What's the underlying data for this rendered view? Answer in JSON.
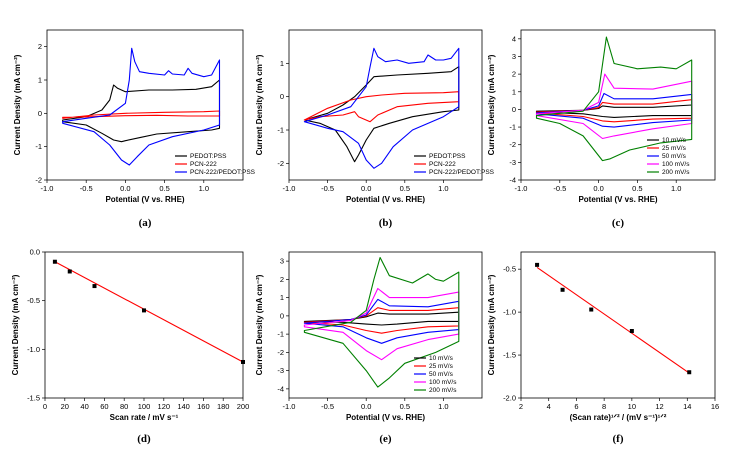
{
  "chart_data": [
    {
      "id": "a",
      "type": "line",
      "caption": "(a)",
      "xlabel": "Potential (V vs. RHE)",
      "ylabel": "Current Density (mA cm⁻²)",
      "xlim": [
        -1.0,
        1.5
      ],
      "ylim": [
        -2.0,
        2.5
      ],
      "xticks": [
        -1.0,
        -0.5,
        0.0,
        0.5,
        1.0
      ],
      "xtick_labels": [
        "-1.0",
        "-0.5",
        "0.0",
        "0.5",
        "1.0"
      ],
      "yticks": [
        -2,
        -1,
        0,
        1,
        2
      ],
      "ytick_labels": [
        "-2",
        "-1",
        "0",
        "1",
        "2"
      ],
      "legend_position": "bottom-right",
      "series": [
        {
          "name": "PEDOT:PSS",
          "color": "#000000",
          "closed": true,
          "x": [
            -0.8,
            -0.5,
            -0.3,
            -0.2,
            -0.15,
            -0.1,
            0.0,
            0.3,
            0.6,
            0.9,
            1.1,
            1.2,
            1.2,
            1.1,
            0.8,
            0.4,
            0.2,
            0.0,
            -0.05,
            -0.15,
            -0.3,
            -0.5,
            -0.8
          ],
          "y": [
            -0.2,
            -0.1,
            0.1,
            0.4,
            0.85,
            0.75,
            0.65,
            0.7,
            0.7,
            0.72,
            0.8,
            1.0,
            -0.45,
            -0.5,
            -0.55,
            -0.62,
            -0.72,
            -0.82,
            -0.85,
            -0.8,
            -0.6,
            -0.35,
            -0.25
          ]
        },
        {
          "name": "PCN-222",
          "color": "#ff0000",
          "closed": true,
          "x": [
            -0.8,
            -0.4,
            0.0,
            0.5,
            1.0,
            1.2,
            1.2,
            0.8,
            0.4,
            0.0,
            -0.4,
            -0.8
          ],
          "y": [
            -0.15,
            -0.05,
            0.0,
            0.03,
            0.05,
            0.07,
            -0.08,
            -0.08,
            -0.06,
            -0.07,
            -0.1,
            -0.12
          ]
        },
        {
          "name": "PCN-222/PEDOT:PSS",
          "color": "#0000ff",
          "closed": true,
          "x": [
            -0.8,
            -0.5,
            -0.2,
            0.0,
            0.05,
            0.08,
            0.12,
            0.18,
            0.3,
            0.5,
            0.55,
            0.6,
            0.75,
            0.8,
            0.85,
            1.0,
            1.1,
            1.2,
            1.2,
            1.0,
            0.6,
            0.3,
            0.15,
            0.05,
            -0.05,
            -0.2,
            -0.4,
            -0.8
          ],
          "y": [
            -0.25,
            -0.15,
            -0.05,
            0.3,
            1.0,
            1.95,
            1.55,
            1.25,
            1.2,
            1.15,
            1.28,
            1.18,
            1.15,
            1.35,
            1.2,
            1.1,
            1.15,
            1.6,
            -0.35,
            -0.5,
            -0.7,
            -0.95,
            -1.3,
            -1.55,
            -1.4,
            -0.95,
            -0.55,
            -0.3
          ]
        }
      ]
    },
    {
      "id": "b",
      "type": "line",
      "caption": "(b)",
      "xlabel": "Potential (V vs. RHE)",
      "ylabel": "Current Density (mA cm⁻²)",
      "xlim": [
        -1.0,
        1.5
      ],
      "ylim": [
        -2.5,
        2.0
      ],
      "xticks": [
        -1.0,
        -0.5,
        0.0,
        0.5,
        1.0
      ],
      "xtick_labels": [
        "-1.0",
        "-0.5",
        "0.0",
        "0.5",
        "1.0"
      ],
      "yticks": [
        -2,
        -1,
        0,
        1
      ],
      "ytick_labels": [
        "-2",
        "-1",
        "0",
        "1"
      ],
      "legend_position": "bottom-right",
      "series": [
        {
          "name": "PEDOT:PSS",
          "color": "#000000",
          "closed": true,
          "x": [
            -0.8,
            -0.5,
            -0.3,
            -0.15,
            0.0,
            0.1,
            0.4,
            0.8,
            1.1,
            1.2,
            1.2,
            1.0,
            0.6,
            0.3,
            0.1,
            0.0,
            -0.1,
            -0.15,
            -0.25,
            -0.4,
            -0.6,
            -0.8
          ],
          "y": [
            -0.7,
            -0.5,
            -0.25,
            0.0,
            0.35,
            0.6,
            0.65,
            0.7,
            0.75,
            0.9,
            -0.4,
            -0.45,
            -0.6,
            -0.8,
            -0.95,
            -1.3,
            -1.75,
            -1.95,
            -1.5,
            -1.0,
            -0.8,
            -0.7
          ]
        },
        {
          "name": "PCN-222",
          "color": "#ff0000",
          "closed": true,
          "x": [
            -0.8,
            -0.5,
            -0.2,
            0.0,
            0.2,
            0.5,
            1.0,
            1.2,
            1.2,
            0.8,
            0.4,
            0.15,
            0.05,
            -0.1,
            -0.15,
            -0.3,
            -0.6,
            -0.8
          ],
          "y": [
            -0.7,
            -0.35,
            -0.1,
            0.0,
            0.05,
            0.1,
            0.12,
            0.15,
            -0.15,
            -0.2,
            -0.3,
            -0.55,
            -0.75,
            -0.6,
            -0.45,
            -0.55,
            -0.6,
            -0.7
          ]
        },
        {
          "name": "PCN-222/PEDOT:PSS",
          "color": "#0000ff",
          "closed": true,
          "x": [
            -0.8,
            -0.5,
            -0.2,
            0.0,
            0.05,
            0.1,
            0.15,
            0.25,
            0.4,
            0.55,
            0.75,
            0.8,
            0.9,
            1.0,
            1.1,
            1.2,
            1.2,
            1.0,
            0.6,
            0.35,
            0.2,
            0.1,
            0.0,
            -0.1,
            -0.3,
            -0.5,
            -0.8
          ],
          "y": [
            -0.75,
            -0.55,
            -0.3,
            0.3,
            0.9,
            1.45,
            1.2,
            1.05,
            1.1,
            1.0,
            1.05,
            1.25,
            1.1,
            1.1,
            1.15,
            1.45,
            -0.3,
            -0.6,
            -1.0,
            -1.5,
            -2.0,
            -2.15,
            -1.9,
            -1.4,
            -1.05,
            -0.95,
            -0.75
          ]
        }
      ]
    },
    {
      "id": "c",
      "type": "line",
      "caption": "(c)",
      "xlabel": "Potential (V vs. RHE)",
      "ylabel": "Current Density (mA cm⁻²)",
      "xlim": [
        -1.0,
        1.5
      ],
      "ylim": [
        -4.0,
        4.5
      ],
      "xticks": [
        -1.0,
        -0.5,
        0.0,
        0.5,
        1.0
      ],
      "xtick_labels": [
        "-1.0",
        "-0.5",
        "0.0",
        "0.5",
        "1.0"
      ],
      "yticks": [
        -4,
        -3,
        -2,
        -1,
        0,
        1,
        2,
        3,
        4
      ],
      "ytick_labels": [
        "-4",
        "-3",
        "-2",
        "-1",
        "0",
        "1",
        "2",
        "3",
        "4"
      ],
      "legend_position": "bottom-right",
      "series": [
        {
          "name": "10 mV/s",
          "color": "#000000",
          "closed": true,
          "x": [
            -0.8,
            -0.2,
            0.0,
            0.05,
            0.2,
            0.7,
            1.2,
            1.2,
            0.7,
            0.2,
            0.05,
            -0.2,
            -0.8
          ],
          "y": [
            -0.1,
            -0.05,
            0.05,
            0.2,
            0.12,
            0.12,
            0.25,
            -0.35,
            -0.35,
            -0.45,
            -0.4,
            -0.25,
            -0.15
          ]
        },
        {
          "name": "25 mV/s",
          "color": "#ff0000",
          "closed": true,
          "x": [
            -0.8,
            -0.2,
            0.0,
            0.05,
            0.2,
            0.7,
            1.2,
            1.2,
            0.7,
            0.2,
            0.05,
            -0.2,
            -0.8
          ],
          "y": [
            -0.15,
            -0.05,
            0.1,
            0.4,
            0.3,
            0.3,
            0.55,
            -0.5,
            -0.55,
            -0.7,
            -0.65,
            -0.4,
            -0.2
          ]
        },
        {
          "name": "50 mV/s",
          "color": "#0000ff",
          "closed": true,
          "x": [
            -0.8,
            -0.2,
            0.0,
            0.07,
            0.2,
            0.7,
            1.2,
            1.2,
            0.7,
            0.2,
            0.05,
            -0.2,
            -0.8
          ],
          "y": [
            -0.2,
            -0.05,
            0.2,
            0.9,
            0.6,
            0.6,
            0.85,
            -0.6,
            -0.75,
            -1.0,
            -0.95,
            -0.5,
            -0.25
          ]
        },
        {
          "name": "100 mV/s",
          "color": "#ff00ff",
          "closed": true,
          "x": [
            -0.8,
            -0.2,
            0.0,
            0.08,
            0.2,
            0.7,
            1.2,
            1.2,
            0.7,
            0.2,
            0.05,
            -0.2,
            -0.8
          ],
          "y": [
            -0.25,
            -0.05,
            0.4,
            2.0,
            1.2,
            1.15,
            1.6,
            -0.8,
            -1.1,
            -1.5,
            -1.65,
            -0.8,
            -0.35
          ]
        },
        {
          "name": "200 mV/s",
          "color": "#008000",
          "closed": true,
          "x": [
            -0.8,
            -0.2,
            0.0,
            0.1,
            0.2,
            0.5,
            0.8,
            1.0,
            1.2,
            1.2,
            0.8,
            0.4,
            0.15,
            0.05,
            -0.2,
            -0.5,
            -0.8
          ],
          "y": [
            -0.35,
            -0.1,
            1.0,
            4.1,
            2.6,
            2.3,
            2.4,
            2.3,
            2.8,
            -1.7,
            -1.9,
            -2.3,
            -2.8,
            -2.9,
            -1.5,
            -0.8,
            -0.5
          ]
        }
      ]
    },
    {
      "id": "d",
      "type": "scatter",
      "caption": "(d)",
      "xlabel": "Scan rate / mV s⁻¹",
      "ylabel": "Current Density (mA cm⁻²)",
      "xlim": [
        0,
        200
      ],
      "ylim": [
        -1.5,
        0.0
      ],
      "xticks": [
        0,
        20,
        40,
        60,
        80,
        100,
        120,
        140,
        160,
        180,
        200
      ],
      "xtick_labels": [
        "0",
        "20",
        "40",
        "60",
        "80",
        "100",
        "120",
        "140",
        "160",
        "180",
        "200"
      ],
      "yticks": [
        -1.5,
        -1.0,
        -0.5,
        0.0
      ],
      "ytick_labels": [
        "-1.5",
        "-1.0",
        "-0.5",
        "0.0"
      ],
      "points": {
        "x": [
          10,
          25,
          50,
          100,
          200
        ],
        "y": [
          -0.1,
          -0.2,
          -0.35,
          -0.6,
          -1.13
        ]
      },
      "fit": {
        "x": [
          10,
          200
        ],
        "y": [
          -0.1,
          -1.13
        ],
        "color": "#ff0000"
      }
    },
    {
      "id": "e",
      "type": "line",
      "caption": "(e)",
      "xlabel": "Potential (V vs. RHE)",
      "ylabel": "Current Density (mA cm⁻²)",
      "xlim": [
        -1.0,
        1.5
      ],
      "ylim": [
        -4.5,
        3.5
      ],
      "xticks": [
        -1.0,
        -0.5,
        0.0,
        0.5,
        1.0
      ],
      "xtick_labels": [
        "-1.0",
        "-0.5",
        "0.0",
        "0.5",
        "1.0"
      ],
      "yticks": [
        -4,
        -3,
        -2,
        -1,
        0,
        1,
        2,
        3
      ],
      "ytick_labels": [
        "-4",
        "-3",
        "-2",
        "-1",
        "0",
        "1",
        "2",
        "3"
      ],
      "legend_position": "bottom-right",
      "series": [
        {
          "name": "10 mV/s",
          "color": "#000000",
          "closed": true,
          "x": [
            -0.8,
            -0.2,
            0.0,
            0.15,
            0.3,
            0.8,
            1.2,
            1.2,
            0.8,
            0.4,
            0.2,
            0.0,
            -0.3,
            -0.8
          ],
          "y": [
            -0.3,
            -0.2,
            -0.05,
            0.15,
            0.1,
            0.1,
            0.2,
            -0.3,
            -0.3,
            -0.45,
            -0.5,
            -0.45,
            -0.35,
            -0.3
          ]
        },
        {
          "name": "25 mV/s",
          "color": "#ff0000",
          "closed": true,
          "x": [
            -0.8,
            -0.2,
            0.0,
            0.15,
            0.3,
            0.8,
            1.2,
            1.2,
            0.8,
            0.4,
            0.2,
            0.0,
            -0.3,
            -0.8
          ],
          "y": [
            -0.35,
            -0.2,
            0.0,
            0.45,
            0.3,
            0.3,
            0.45,
            -0.55,
            -0.6,
            -0.8,
            -0.95,
            -0.8,
            -0.5,
            -0.35
          ]
        },
        {
          "name": "50 mV/s",
          "color": "#0000ff",
          "closed": true,
          "x": [
            -0.8,
            -0.2,
            0.0,
            0.15,
            0.3,
            0.8,
            1.2,
            1.2,
            0.8,
            0.4,
            0.2,
            0.0,
            -0.3,
            -0.8
          ],
          "y": [
            -0.4,
            -0.2,
            0.05,
            0.9,
            0.55,
            0.5,
            0.8,
            -0.75,
            -0.9,
            -1.2,
            -1.5,
            -1.2,
            -0.6,
            -0.4
          ]
        },
        {
          "name": "100 mV/s",
          "color": "#ff00ff",
          "closed": true,
          "x": [
            -0.8,
            -0.2,
            0.0,
            0.15,
            0.3,
            0.8,
            1.2,
            1.2,
            0.8,
            0.4,
            0.2,
            0.0,
            -0.3,
            -0.8
          ],
          "y": [
            -0.5,
            -0.25,
            0.15,
            1.5,
            1.0,
            1.0,
            1.3,
            -1.0,
            -1.3,
            -1.8,
            -2.4,
            -1.9,
            -0.9,
            -0.6
          ]
        },
        {
          "name": "200 mV/s",
          "color": "#008000",
          "closed": true,
          "x": [
            -0.8,
            -0.2,
            0.0,
            0.1,
            0.18,
            0.3,
            0.6,
            0.8,
            0.9,
            1.0,
            1.2,
            1.2,
            0.9,
            0.5,
            0.3,
            0.15,
            0.0,
            -0.3,
            -0.8
          ],
          "y": [
            -0.8,
            -0.35,
            0.3,
            2.0,
            3.2,
            2.2,
            1.8,
            2.3,
            2.0,
            1.9,
            2.4,
            -1.4,
            -2.0,
            -2.6,
            -3.4,
            -3.9,
            -3.0,
            -1.5,
            -0.9
          ]
        }
      ]
    },
    {
      "id": "f",
      "type": "scatter",
      "caption": "(f)",
      "xlabel": "(Scan rate)¹ᐟ² / (mV s⁻¹)¹ᐟ²",
      "ylabel": "Current Density (mA cm⁻²)",
      "xlim": [
        2,
        16
      ],
      "ylim": [
        -2.0,
        -0.3
      ],
      "xticks": [
        2,
        4,
        6,
        8,
        10,
        12,
        14,
        16
      ],
      "xtick_labels": [
        "2",
        "4",
        "6",
        "8",
        "10",
        "12",
        "14",
        "16"
      ],
      "yticks": [
        -2.0,
        -1.5,
        -1.0,
        -0.5
      ],
      "ytick_labels": [
        "-2.0",
        "-1.5",
        "-1.0",
        "-0.5"
      ],
      "points": {
        "x": [
          3.16,
          5.0,
          7.07,
          10.0,
          14.14
        ],
        "y": [
          -0.45,
          -0.74,
          -0.97,
          -1.22,
          -1.7
        ]
      },
      "fit": {
        "x": [
          3.16,
          14.14
        ],
        "y": [
          -0.48,
          -1.71
        ],
        "color": "#ff0000"
      }
    }
  ]
}
